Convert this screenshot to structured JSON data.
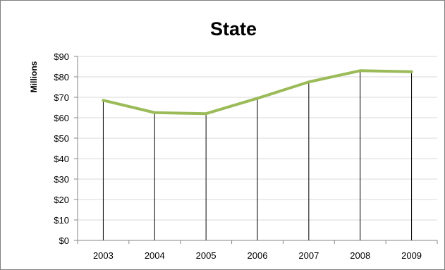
{
  "chart_data": {
    "type": "line",
    "title": "State",
    "xlabel": "",
    "ylabel": "Millions",
    "categories": [
      "2003",
      "2004",
      "2005",
      "2006",
      "2007",
      "2008",
      "2009"
    ],
    "series": [
      {
        "values": [
          68.5,
          62.5,
          62,
          69.5,
          77.5,
          83,
          82.5
        ]
      }
    ],
    "ylim": [
      0,
      90
    ],
    "yticks": [
      0,
      10,
      20,
      30,
      40,
      50,
      60,
      70,
      80,
      90
    ],
    "ytick_labels": [
      "$0",
      "$10",
      "$20",
      "$30",
      "$40",
      "$50",
      "$60",
      "$70",
      "$80",
      "$90"
    ],
    "grid": true,
    "drop_lines": true,
    "legend": "none",
    "colors": {
      "line": "#9bbb59",
      "grid": "#d9d9d9",
      "axis": "#868686",
      "drop": "#000000"
    }
  }
}
